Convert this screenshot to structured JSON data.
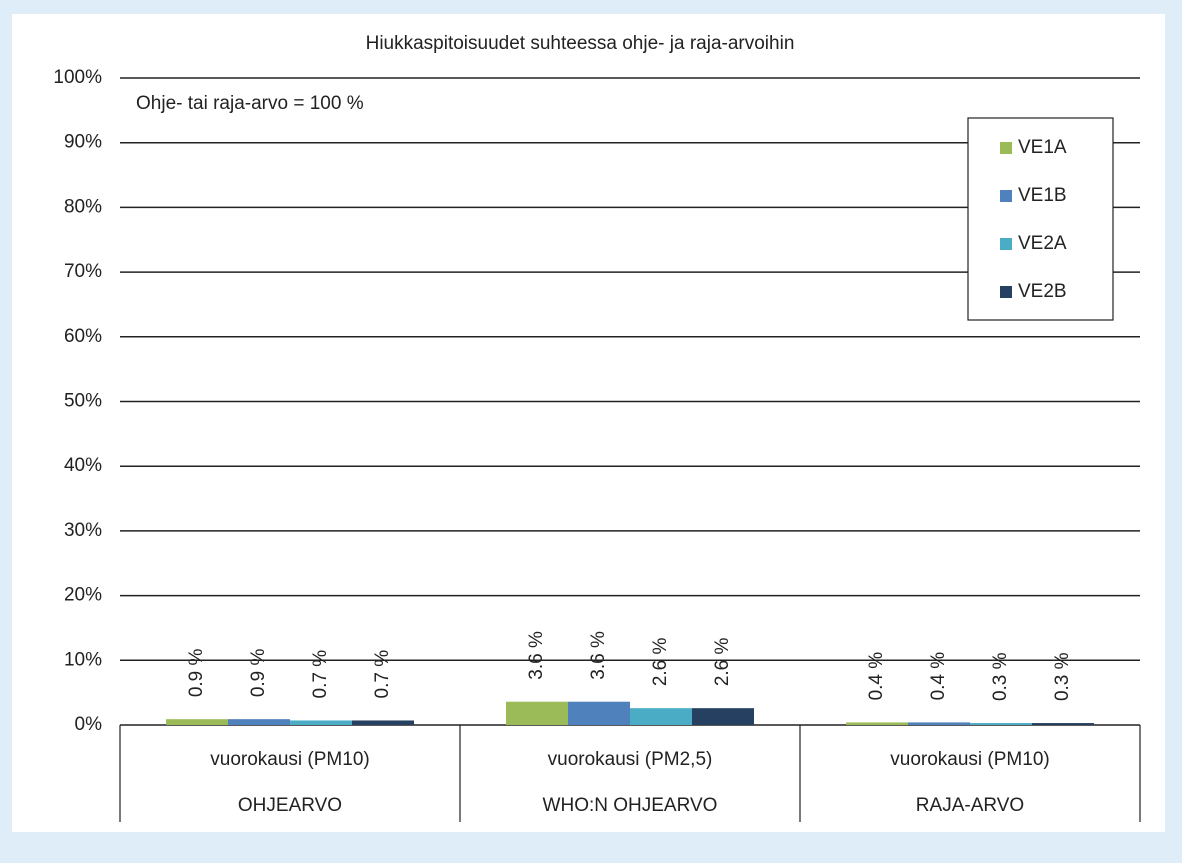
{
  "chart_data": {
    "type": "bar",
    "title": "Hiukkaspitoisuudet suhteessa ohje- ja raja-arvoihin",
    "annotation": "Ohje-  tai raja-arvo = 100 %",
    "categories": [
      "vuorokausi (PM10)",
      "vuorokausi (PM2,5)",
      "vuorokausi (PM10)"
    ],
    "groups": [
      "OHJEARVO",
      "WHO:N OHJEARVO",
      "RAJA-ARVO"
    ],
    "series": [
      {
        "name": "VE1A",
        "color": "#9bbb59",
        "values": [
          0.9,
          3.6,
          0.4
        ],
        "value_labels": [
          "0.9 %",
          "3.6 %",
          "0.4 %"
        ]
      },
      {
        "name": "VE1B",
        "color": "#4f81bd",
        "values": [
          0.9,
          3.6,
          0.4
        ],
        "value_labels": [
          "0.9 %",
          "3.6 %",
          "0.4 %"
        ]
      },
      {
        "name": "VE2A",
        "color": "#4bacc6",
        "values": [
          0.7,
          2.6,
          0.3
        ],
        "value_labels": [
          "0.7 %",
          "2.6 %",
          "0.3 %"
        ]
      },
      {
        "name": "VE2B",
        "color": "#254061",
        "values": [
          0.7,
          2.6,
          0.3
        ],
        "value_labels": [
          "0.7 %",
          "2.6 %",
          "0.3 %"
        ]
      }
    ],
    "ylim": [
      0,
      100
    ],
    "yticks": [
      {
        "value": 0,
        "label": "0%"
      },
      {
        "value": 10,
        "label": "10%"
      },
      {
        "value": 20,
        "label": "20%"
      },
      {
        "value": 30,
        "label": "30%"
      },
      {
        "value": 40,
        "label": "40%"
      },
      {
        "value": 50,
        "label": "50%"
      },
      {
        "value": 60,
        "label": "60%"
      },
      {
        "value": 70,
        "label": "70%"
      },
      {
        "value": 80,
        "label": "80%"
      },
      {
        "value": 90,
        "label": "90%"
      },
      {
        "value": 100,
        "label": "100%"
      }
    ],
    "grid": true,
    "legend": "upper right"
  }
}
